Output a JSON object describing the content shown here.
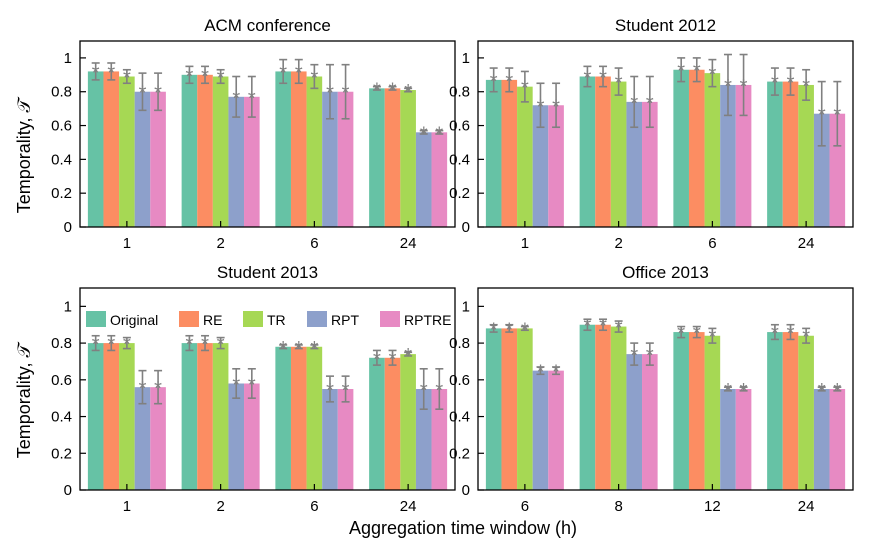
{
  "colors": {
    "Original": "#66c2a5",
    "RE": "#fc8d62",
    "TR": "#a6d854",
    "RPT": "#8da0cb",
    "RPTRE": "#e78ac3",
    "errorbar": "#808080",
    "axis": "#000000"
  },
  "shared": {
    "xlabel": "Aggregation time window (h)",
    "ylabel": "Temporality, 𝒯",
    "legend_placement": "top (inside Student 2013 panel)"
  },
  "chart_data": [
    {
      "type": "bar",
      "title": "ACM conference",
      "categories": [
        "1",
        "2",
        "6",
        "24"
      ],
      "ylim": [
        0,
        1.1
      ],
      "yticks": [
        "0",
        "0.2",
        "0.4",
        "0.6",
        "0.8",
        "1"
      ],
      "grid": false,
      "series": [
        {
          "name": "Original",
          "values": [
            0.92,
            0.9,
            0.92,
            0.82
          ],
          "errors": [
            0.05,
            0.05,
            0.07,
            0.01
          ]
        },
        {
          "name": "RE",
          "values": [
            0.92,
            0.9,
            0.92,
            0.82
          ],
          "errors": [
            0.05,
            0.05,
            0.07,
            0.01
          ]
        },
        {
          "name": "TR",
          "values": [
            0.89,
            0.89,
            0.89,
            0.81
          ],
          "errors": [
            0.04,
            0.04,
            0.07,
            0.01
          ]
        },
        {
          "name": "RPT",
          "values": [
            0.8,
            0.77,
            0.8,
            0.56
          ],
          "errors": [
            0.11,
            0.12,
            0.16,
            0.01
          ]
        },
        {
          "name": "RPTRE",
          "values": [
            0.8,
            0.77,
            0.8,
            0.56
          ],
          "errors": [
            0.11,
            0.12,
            0.16,
            0.01
          ]
        }
      ]
    },
    {
      "type": "bar",
      "title": "Student 2012",
      "categories": [
        "1",
        "2",
        "6",
        "24"
      ],
      "ylim": [
        0,
        1.1
      ],
      "yticks": [
        "0",
        "0.2",
        "0.4",
        "0.6",
        "0.8",
        "1"
      ],
      "grid": false,
      "series": [
        {
          "name": "Original",
          "values": [
            0.87,
            0.89,
            0.93,
            0.86
          ],
          "errors": [
            0.07,
            0.06,
            0.07,
            0.08
          ]
        },
        {
          "name": "RE",
          "values": [
            0.87,
            0.89,
            0.93,
            0.86
          ],
          "errors": [
            0.07,
            0.06,
            0.07,
            0.08
          ]
        },
        {
          "name": "TR",
          "values": [
            0.83,
            0.86,
            0.91,
            0.84
          ],
          "errors": [
            0.09,
            0.08,
            0.08,
            0.09
          ]
        },
        {
          "name": "RPT",
          "values": [
            0.72,
            0.74,
            0.84,
            0.67
          ],
          "errors": [
            0.13,
            0.15,
            0.18,
            0.19
          ]
        },
        {
          "name": "RPTRE",
          "values": [
            0.72,
            0.74,
            0.84,
            0.67
          ],
          "errors": [
            0.13,
            0.15,
            0.18,
            0.19
          ]
        }
      ]
    },
    {
      "type": "bar",
      "title": "Student 2013",
      "categories": [
        "1",
        "2",
        "6",
        "24"
      ],
      "ylim": [
        0,
        1.1
      ],
      "yticks": [
        "0",
        "0.2",
        "0.4",
        "0.6",
        "0.8",
        "1"
      ],
      "grid": false,
      "legend": [
        "Original",
        "RE",
        "TR",
        "RPT",
        "RPTRE"
      ],
      "series": [
        {
          "name": "Original",
          "values": [
            0.8,
            0.8,
            0.78,
            0.72
          ],
          "errors": [
            0.04,
            0.04,
            0.01,
            0.04
          ]
        },
        {
          "name": "RE",
          "values": [
            0.8,
            0.8,
            0.78,
            0.72
          ],
          "errors": [
            0.04,
            0.04,
            0.01,
            0.04
          ]
        },
        {
          "name": "TR",
          "values": [
            0.8,
            0.8,
            0.78,
            0.74
          ],
          "errors": [
            0.03,
            0.03,
            0.01,
            0.01
          ]
        },
        {
          "name": "RPT",
          "values": [
            0.56,
            0.58,
            0.55,
            0.55
          ],
          "errors": [
            0.09,
            0.08,
            0.07,
            0.11
          ]
        },
        {
          "name": "RPTRE",
          "values": [
            0.56,
            0.58,
            0.55,
            0.55
          ],
          "errors": [
            0.09,
            0.08,
            0.07,
            0.11
          ]
        }
      ]
    },
    {
      "type": "bar",
      "title": "Office 2013",
      "categories": [
        "6",
        "8",
        "12",
        "24"
      ],
      "ylim": [
        0,
        1.1
      ],
      "yticks": [
        "0",
        "0.2",
        "0.4",
        "0.6",
        "0.8",
        "1"
      ],
      "grid": false,
      "series": [
        {
          "name": "Original",
          "values": [
            0.88,
            0.9,
            0.86,
            0.86
          ],
          "errors": [
            0.02,
            0.03,
            0.03,
            0.04
          ]
        },
        {
          "name": "RE",
          "values": [
            0.88,
            0.9,
            0.86,
            0.86
          ],
          "errors": [
            0.02,
            0.03,
            0.03,
            0.04
          ]
        },
        {
          "name": "TR",
          "values": [
            0.88,
            0.89,
            0.84,
            0.84
          ],
          "errors": [
            0.01,
            0.03,
            0.04,
            0.04
          ]
        },
        {
          "name": "RPT",
          "values": [
            0.65,
            0.74,
            0.55,
            0.55
          ],
          "errors": [
            0.02,
            0.06,
            0.01,
            0.01
          ]
        },
        {
          "name": "RPTRE",
          "values": [
            0.65,
            0.74,
            0.55,
            0.55
          ],
          "errors": [
            0.02,
            0.06,
            0.01,
            0.01
          ]
        }
      ]
    }
  ]
}
